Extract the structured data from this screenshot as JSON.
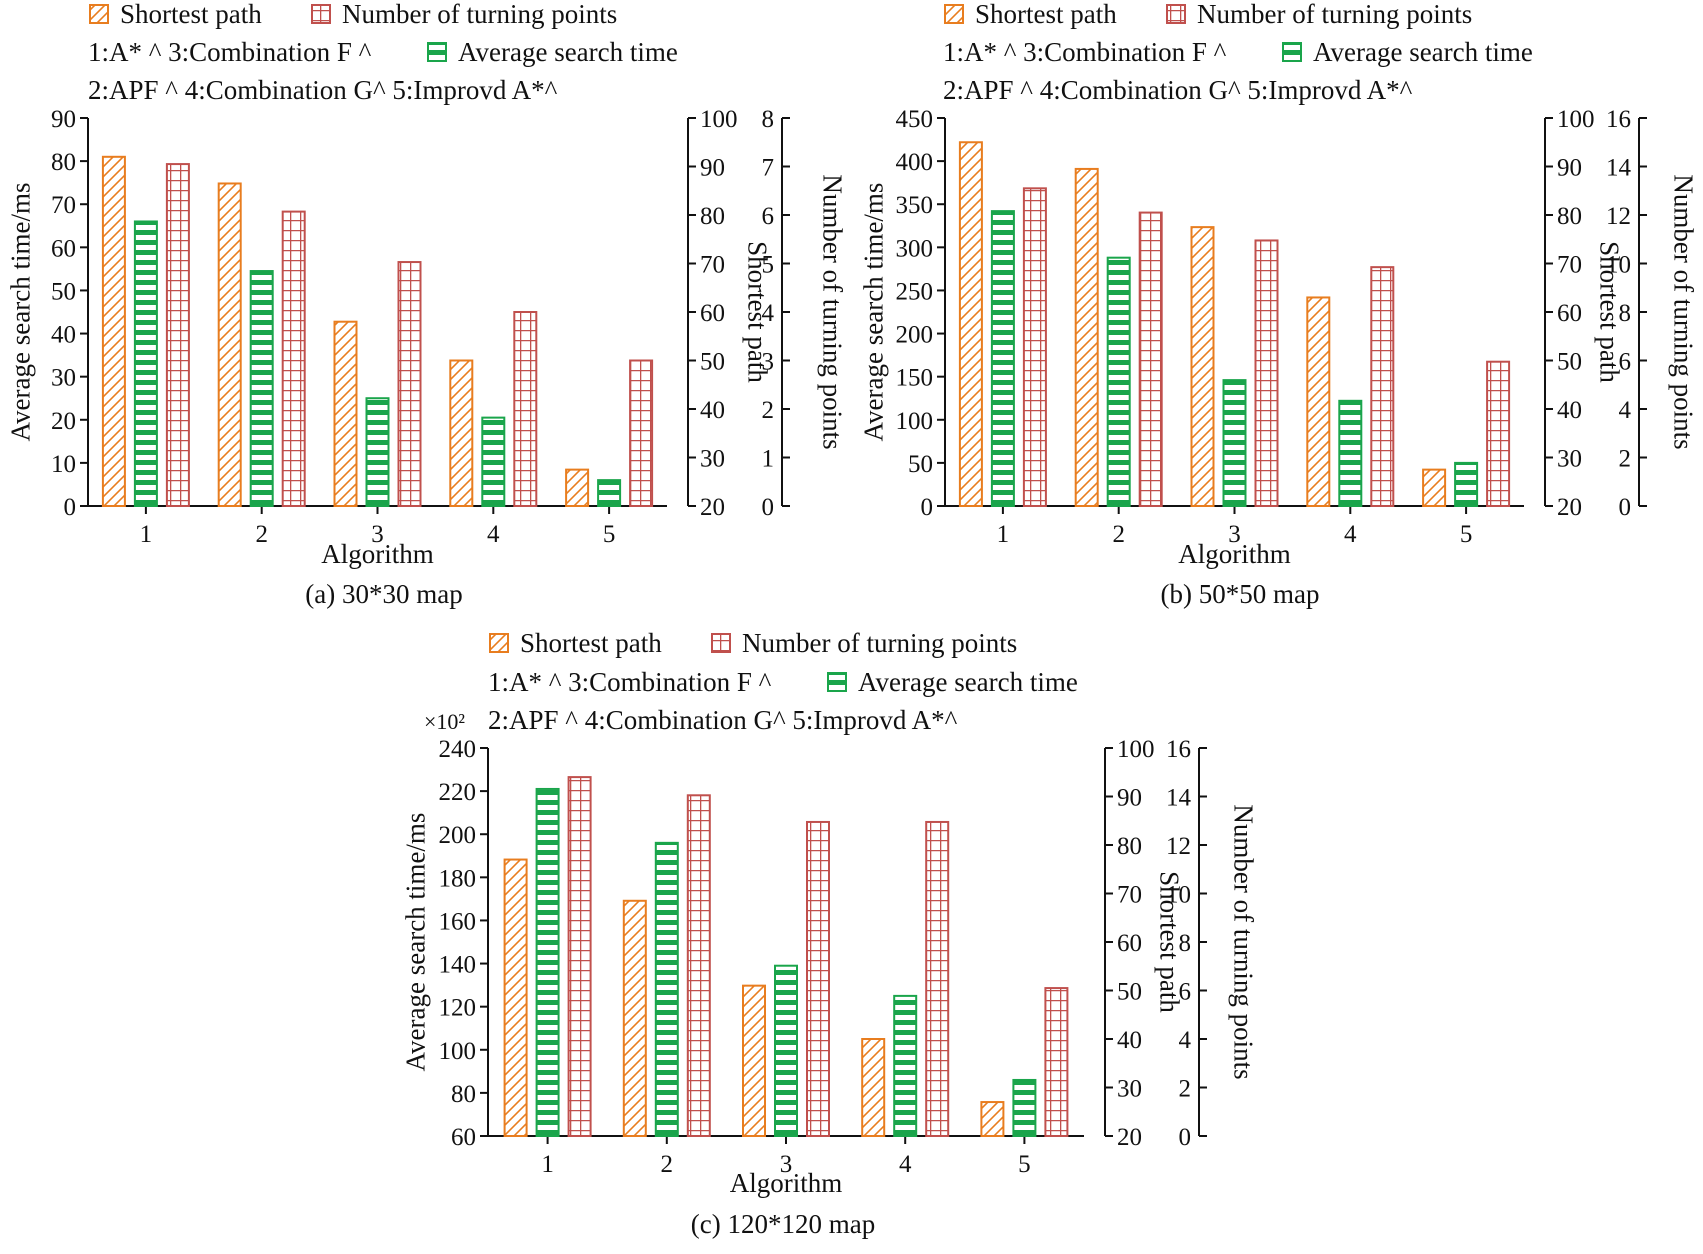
{
  "colors": {
    "orange": "#e87d1f",
    "green": "#1aa54b",
    "red": "#c0504d",
    "axis": "#111111"
  },
  "chart_data": [
    {
      "type": "bar",
      "caption": "(a) 30*30 map",
      "xlabel": "Algorithm",
      "categories": [
        "1",
        "2",
        "3",
        "4",
        "5"
      ],
      "legend_row1": [
        "Shortest path",
        "Number of turning points"
      ],
      "legend_row2_text": "1:A* ^   3:Combination F ^",
      "legend_row2_series": "Average search time",
      "legend_row3": "2:APF ^ 4:Combination G^ 5:Improvd A*^",
      "multiplier": "",
      "y_left": {
        "label": "Average search time/ms",
        "ylim": [
          0,
          90
        ],
        "ticks": [
          "0",
          "10",
          "20",
          "30",
          "40",
          "50",
          "60",
          "70",
          "80",
          "90"
        ]
      },
      "y_right1": {
        "label": "Shortest path",
        "ylim": [
          20,
          100
        ],
        "ticks": [
          "20",
          "30",
          "40",
          "50",
          "60",
          "70",
          "80",
          "90",
          "100"
        ]
      },
      "y_right2": {
        "label": "Number of turning points",
        "ylim": [
          0,
          8
        ],
        "ticks": [
          "0",
          "1",
          "2",
          "3",
          "4",
          "5",
          "6",
          "7",
          "8"
        ]
      },
      "series": [
        {
          "name": "Shortest path",
          "axis": "right1",
          "values": [
            92,
            86.5,
            58,
            50,
            27.5
          ]
        },
        {
          "name": "Average search time",
          "axis": "left",
          "values": [
            66,
            54.5,
            25,
            20.5,
            6
          ]
        },
        {
          "name": "Number of turning points",
          "axis": "right2",
          "values": [
            7.05,
            6.07,
            5.03,
            4.0,
            3.0
          ]
        }
      ]
    },
    {
      "type": "bar",
      "caption": "(b) 50*50 map",
      "xlabel": "Algorithm",
      "categories": [
        "1",
        "2",
        "3",
        "4",
        "5"
      ],
      "legend_row1": [
        "Shortest path",
        "Number of turning points"
      ],
      "legend_row2_text": "1:A* ^   3:Combination F ^",
      "legend_row2_series": "Average search time",
      "legend_row3": "2:APF ^ 4:Combination G^ 5:Improvd A*^",
      "multiplier": "",
      "y_left": {
        "label": "Average search time/ms",
        "ylim": [
          0,
          450
        ],
        "ticks": [
          "0",
          "50",
          "100",
          "150",
          "200",
          "250",
          "300",
          "350",
          "400",
          "450"
        ]
      },
      "y_right1": {
        "label": "Shortest path",
        "ylim": [
          20,
          100
        ],
        "ticks": [
          "20",
          "30",
          "40",
          "50",
          "60",
          "70",
          "80",
          "90",
          "100"
        ]
      },
      "y_right2": {
        "label": "Number of turning points",
        "ylim": [
          0,
          16
        ],
        "ticks": [
          "0",
          "2",
          "4",
          "6",
          "8",
          "10",
          "12",
          "14",
          "16"
        ]
      },
      "series": [
        {
          "name": "Shortest path",
          "axis": "right1",
          "values": [
            95,
            89.5,
            77.5,
            63,
            27.5
          ]
        },
        {
          "name": "Average search time",
          "axis": "left",
          "values": [
            342,
            288,
            146,
            122,
            50
          ]
        },
        {
          "name": "Number of turning points",
          "axis": "right2",
          "values": [
            13.1,
            12.1,
            10.95,
            9.85,
            5.95
          ]
        }
      ]
    },
    {
      "type": "bar",
      "caption": "(c) 120*120 map",
      "xlabel": "Algorithm",
      "categories": [
        "1",
        "2",
        "3",
        "4",
        "5"
      ],
      "legend_row1": [
        "Shortest path",
        "Number of turning points"
      ],
      "legend_row2_text": "1:A* ^   3:Combination F ^",
      "legend_row2_series": "Average search time",
      "legend_row3": "2:APF ^ 4:Combination G^ 5:Improvd A*^",
      "multiplier": "×10²",
      "y_left": {
        "label": "Average search time/ms",
        "ylim": [
          60,
          240
        ],
        "ticks": [
          "60",
          "80",
          "100",
          "120",
          "140",
          "160",
          "180",
          "200",
          "220",
          "240"
        ]
      },
      "y_right1": {
        "label": "Shortest path",
        "ylim": [
          20,
          100
        ],
        "ticks": [
          "20",
          "30",
          "40",
          "50",
          "60",
          "70",
          "80",
          "90",
          "100"
        ]
      },
      "y_right2": {
        "label": "Number of turning points",
        "ylim": [
          0,
          16
        ],
        "ticks": [
          "0",
          "2",
          "4",
          "6",
          "8",
          "10",
          "12",
          "14",
          "16"
        ]
      },
      "series": [
        {
          "name": "Shortest path",
          "axis": "right1",
          "values": [
            77,
            68.5,
            51,
            40,
            27
          ]
        },
        {
          "name": "Average search time",
          "axis": "left",
          "values": [
            221,
            196,
            139,
            125,
            86
          ]
        },
        {
          "name": "Number of turning points",
          "axis": "right2",
          "values": [
            14.8,
            14.05,
            12.95,
            12.95,
            6.1
          ]
        }
      ]
    }
  ]
}
